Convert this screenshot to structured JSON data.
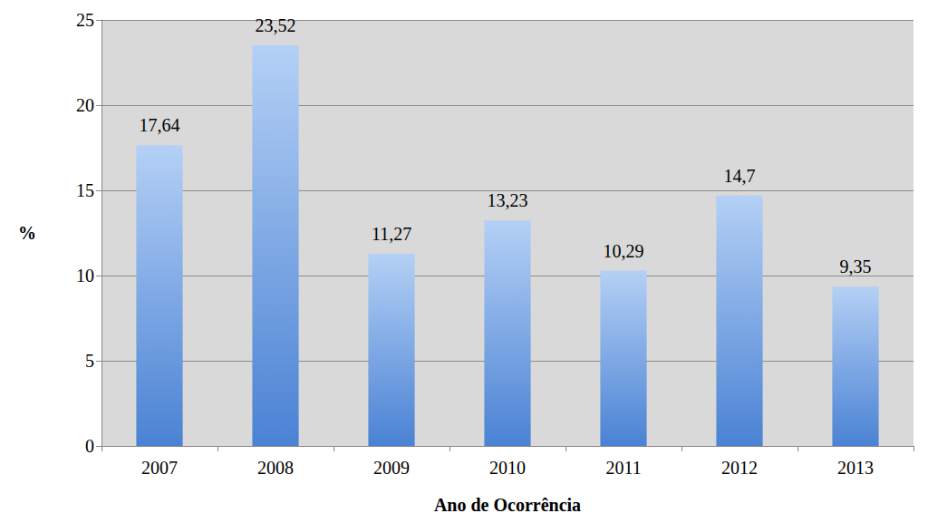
{
  "chart_data": {
    "type": "bar",
    "x_label": "Ano de Ocorrência",
    "y_label": "%",
    "categories": [
      "2007",
      "2008",
      "2009",
      "2010",
      "2011",
      "2012",
      "2013"
    ],
    "values": [
      17.64,
      23.52,
      11.27,
      13.23,
      10.29,
      14.7,
      9.35
    ],
    "value_labels": [
      "17,64",
      "23,52",
      "11,27",
      "13,23",
      "10,29",
      "14,7",
      "9,35"
    ],
    "color": "#4a82d4",
    "ylim": [
      0,
      25
    ],
    "yticks": [
      0,
      5,
      10,
      15,
      20,
      25
    ],
    "grid": true,
    "data_labels": true
  }
}
